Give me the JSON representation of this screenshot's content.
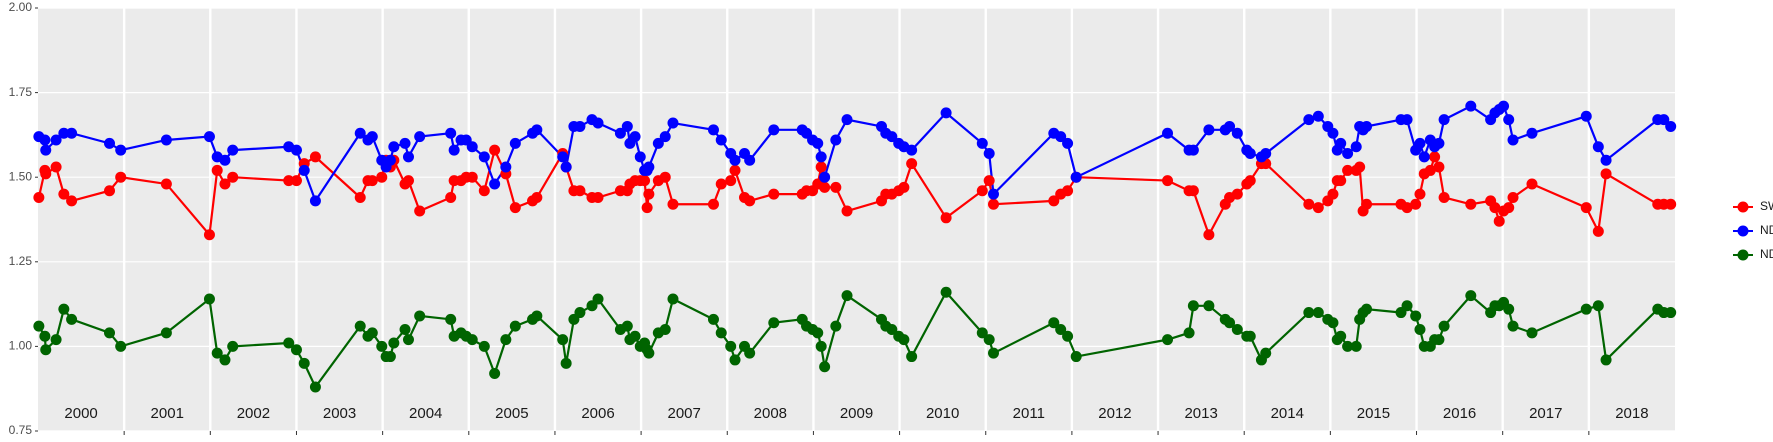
{
  "chart_data": {
    "type": "line",
    "x": [
      2000.01,
      2000.08,
      2000.09,
      2000.21,
      2000.3,
      2000.39,
      2000.83,
      2000.96,
      2001.49,
      2001.99,
      2002.08,
      2002.17,
      2002.26,
      2002.91,
      2003.0,
      2003.09,
      2003.22,
      2003.74,
      2003.83,
      2003.88,
      2003.99,
      2004.04,
      2004.09,
      2004.13,
      2004.26,
      2004.3,
      2004.43,
      2004.79,
      2004.83,
      2004.91,
      2004.97,
      2005.04,
      2005.18,
      2005.3,
      2005.43,
      2005.54,
      2005.74,
      2005.79,
      2006.09,
      2006.13,
      2006.22,
      2006.29,
      2006.43,
      2006.5,
      2006.76,
      2006.84,
      2006.87,
      2006.93,
      2006.99,
      2007.04,
      2007.07,
      2007.09,
      2007.2,
      2007.28,
      2007.37,
      2007.84,
      2007.93,
      2008.04,
      2008.09,
      2008.2,
      2008.26,
      2008.54,
      2008.87,
      2008.92,
      2008.99,
      2009.05,
      2009.09,
      2009.13,
      2009.26,
      2009.39,
      2009.79,
      2009.84,
      2009.91,
      2009.99,
      2010.05,
      2010.14,
      2010.54,
      2010.96,
      2011.04,
      2011.09,
      2011.79,
      2011.87,
      2011.95,
      2012.05,
      2013.11,
      2013.36,
      2013.41,
      2013.59,
      2013.78,
      2013.83,
      2013.92,
      2014.03,
      2014.07,
      2014.2,
      2014.25,
      2014.75,
      2014.86,
      2014.97,
      2015.03,
      2015.08,
      2015.12,
      2015.2,
      2015.3,
      2015.34,
      2015.38,
      2015.42,
      2015.82,
      2015.89,
      2015.99,
      2016.04,
      2016.09,
      2016.16,
      2016.21,
      2016.26,
      2016.32,
      2016.63,
      2016.86,
      2016.91,
      2016.96,
      2017.01,
      2017.07,
      2017.12,
      2017.34,
      2017.97,
      2018.11,
      2018.2,
      2018.8,
      2018.87,
      2018.95
    ],
    "series": [
      {
        "name": "SWIR",
        "color": "#ff0000",
        "values": [
          1.44,
          1.52,
          1.51,
          1.53,
          1.45,
          1.43,
          1.46,
          1.5,
          1.48,
          1.33,
          1.52,
          1.48,
          1.5,
          1.49,
          1.49,
          1.54,
          1.56,
          1.44,
          1.49,
          1.49,
          1.5,
          1.55,
          1.53,
          1.55,
          1.48,
          1.49,
          1.4,
          1.44,
          1.49,
          1.49,
          1.5,
          1.5,
          1.46,
          1.58,
          1.51,
          1.41,
          1.43,
          1.44,
          1.57,
          1.53,
          1.46,
          1.46,
          1.44,
          1.44,
          1.46,
          1.46,
          1.48,
          1.49,
          1.49,
          1.49,
          1.41,
          1.45,
          1.49,
          1.5,
          1.42,
          1.42,
          1.48,
          1.49,
          1.52,
          1.44,
          1.43,
          1.45,
          1.45,
          1.46,
          1.46,
          1.48,
          1.53,
          1.47,
          1.47,
          1.4,
          1.43,
          1.45,
          1.45,
          1.46,
          1.47,
          1.54,
          1.38,
          1.46,
          1.49,
          1.42,
          1.43,
          1.45,
          1.46,
          1.5,
          1.49,
          1.46,
          1.46,
          1.33,
          1.42,
          1.44,
          1.45,
          1.48,
          1.49,
          1.54,
          1.54,
          1.42,
          1.41,
          1.43,
          1.45,
          1.49,
          1.49,
          1.52,
          1.52,
          1.53,
          1.4,
          1.42,
          1.42,
          1.41,
          1.42,
          1.45,
          1.51,
          1.52,
          1.56,
          1.53,
          1.44,
          1.42,
          1.43,
          1.41,
          1.37,
          1.4,
          1.41,
          1.44,
          1.48,
          1.41,
          1.34,
          1.51,
          1.42,
          1.42,
          1.42
        ]
      },
      {
        "name": "NDVI",
        "color": "#0000ff",
        "values": [
          1.62,
          1.61,
          1.58,
          1.61,
          1.63,
          1.63,
          1.6,
          1.58,
          1.61,
          1.62,
          1.56,
          1.55,
          1.58,
          1.59,
          1.58,
          1.52,
          1.43,
          1.63,
          1.61,
          1.62,
          1.55,
          1.53,
          1.55,
          1.59,
          1.6,
          1.56,
          1.62,
          1.63,
          1.58,
          1.61,
          1.61,
          1.59,
          1.56,
          1.48,
          1.53,
          1.6,
          1.63,
          1.64,
          1.56,
          1.53,
          1.65,
          1.65,
          1.67,
          1.66,
          1.63,
          1.65,
          1.6,
          1.62,
          1.56,
          1.52,
          1.52,
          1.53,
          1.6,
          1.62,
          1.66,
          1.64,
          1.61,
          1.57,
          1.55,
          1.57,
          1.55,
          1.64,
          1.64,
          1.63,
          1.61,
          1.6,
          1.56,
          1.5,
          1.61,
          1.67,
          1.65,
          1.63,
          1.62,
          1.6,
          1.59,
          1.58,
          1.69,
          1.6,
          1.57,
          1.45,
          1.63,
          1.62,
          1.6,
          1.5,
          1.63,
          1.58,
          1.58,
          1.64,
          1.64,
          1.65,
          1.63,
          1.58,
          1.57,
          1.56,
          1.57,
          1.67,
          1.68,
          1.65,
          1.63,
          1.58,
          1.6,
          1.57,
          1.59,
          1.65,
          1.64,
          1.65,
          1.67,
          1.67,
          1.58,
          1.6,
          1.56,
          1.61,
          1.59,
          1.6,
          1.67,
          1.71,
          1.67,
          1.69,
          1.7,
          1.71,
          1.67,
          1.61,
          1.63,
          1.68,
          1.59,
          1.55,
          1.67,
          1.67,
          1.65
        ]
      },
      {
        "name": "NDWI",
        "color": "#006400",
        "values": [
          1.06,
          1.03,
          0.99,
          1.02,
          1.11,
          1.08,
          1.04,
          1.0,
          1.04,
          1.14,
          0.98,
          0.96,
          1.0,
          1.01,
          0.99,
          0.95,
          0.88,
          1.06,
          1.03,
          1.04,
          1.0,
          0.97,
          0.97,
          1.01,
          1.05,
          1.02,
          1.09,
          1.08,
          1.03,
          1.04,
          1.03,
          1.02,
          1.0,
          0.92,
          1.02,
          1.06,
          1.08,
          1.09,
          1.02,
          0.95,
          1.08,
          1.1,
          1.12,
          1.14,
          1.05,
          1.06,
          1.02,
          1.03,
          1.0,
          1.01,
          0.99,
          0.98,
          1.04,
          1.05,
          1.14,
          1.08,
          1.04,
          1.0,
          0.96,
          1.0,
          0.98,
          1.07,
          1.08,
          1.06,
          1.05,
          1.04,
          1.0,
          0.94,
          1.06,
          1.15,
          1.08,
          1.06,
          1.05,
          1.03,
          1.02,
          0.97,
          1.16,
          1.04,
          1.02,
          0.98,
          1.07,
          1.05,
          1.03,
          0.97,
          1.02,
          1.04,
          1.12,
          1.12,
          1.08,
          1.07,
          1.05,
          1.03,
          1.03,
          0.96,
          0.98,
          1.1,
          1.1,
          1.08,
          1.07,
          1.02,
          1.03,
          1.0,
          1.0,
          1.08,
          1.1,
          1.11,
          1.1,
          1.12,
          1.09,
          1.05,
          1.0,
          1.0,
          1.02,
          1.02,
          1.06,
          1.15,
          1.1,
          1.12,
          1.12,
          1.13,
          1.11,
          1.06,
          1.04,
          1.11,
          1.12,
          0.96,
          1.11,
          1.1,
          1.1
        ]
      }
    ],
    "xlim": [
      2000,
      2019
    ],
    "xticks": [
      2001,
      2002,
      2003,
      2004,
      2005,
      2006,
      2007,
      2008,
      2009,
      2010,
      2011,
      2012,
      2013,
      2014,
      2015,
      2016,
      2017,
      2018
    ],
    "year_labels": [
      2000,
      2001,
      2002,
      2003,
      2004,
      2005,
      2006,
      2007,
      2008,
      2009,
      2010,
      2011,
      2012,
      2013,
      2014,
      2015,
      2016,
      2017,
      2018
    ],
    "ylim": [
      0.75,
      2.0
    ],
    "yticks": [
      0.75,
      {
        "value": 1,
        "label": "1.00"
      },
      1.25,
      {
        "value": 1.5,
        "label": "1.50"
      },
      1.75,
      {
        "value": 2,
        "label": "2.00"
      }
    ],
    "grid": true,
    "legend": "right"
  }
}
